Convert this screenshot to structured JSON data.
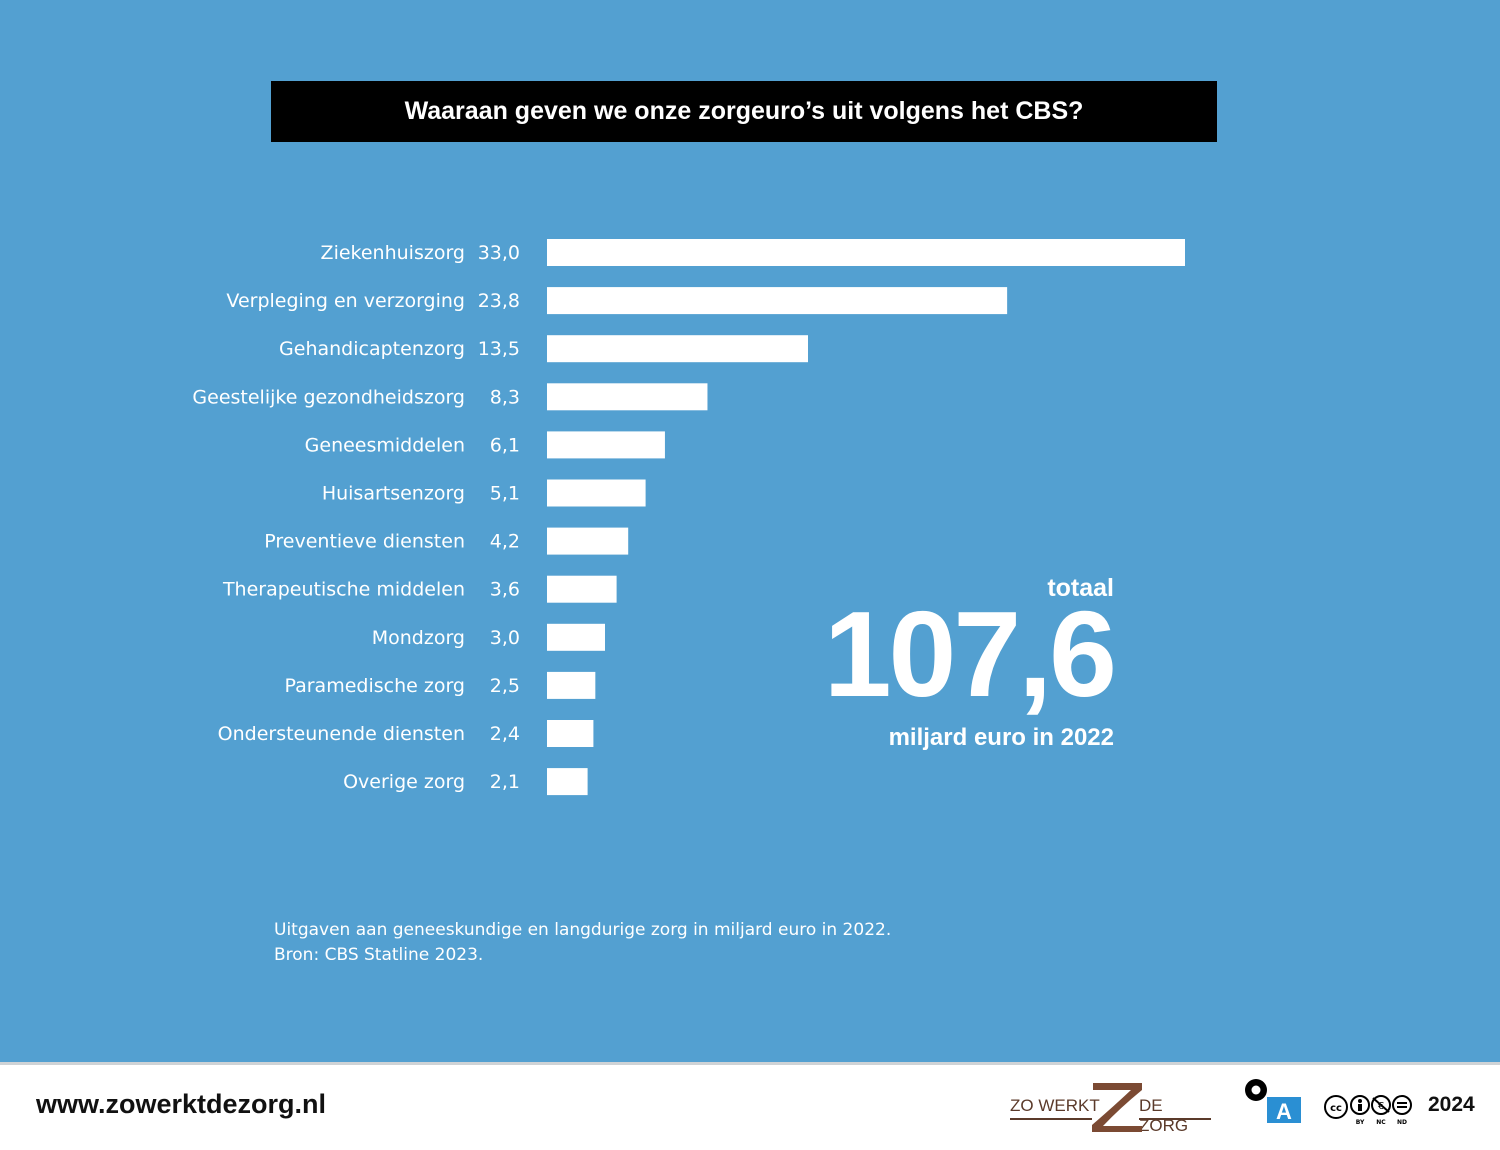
{
  "chart_data": {
    "type": "bar",
    "orientation": "horizontal",
    "title": "Waaraan geven we onze zorgeuro’s uit volgens het CBS?",
    "categories": [
      "Ziekenhuiszorg",
      "Verpleging en verzorging",
      "Gehandicaptenzorg",
      "Geestelijke gezondheidszorg",
      "Geneesmiddelen",
      "Huisartsenzorg",
      "Preventieve diensten",
      "Therapeutische middelen",
      "Mondzorg",
      "Paramedische zorg",
      "Ondersteunende diensten",
      "Overige zorg"
    ],
    "values": [
      33.0,
      23.8,
      13.5,
      8.3,
      6.1,
      5.1,
      4.2,
      3.6,
      3.0,
      2.5,
      2.4,
      2.1
    ],
    "value_labels": [
      "33,0",
      "23,8",
      "13,5",
      "8,3",
      "6,1",
      "5,1",
      "4,2",
      "3,6",
      "3,0",
      "2,5",
      "2,4",
      "2,1"
    ],
    "xlim": [
      0,
      33.0
    ],
    "grid": false,
    "legend": "none",
    "bar_color": "#ffffff",
    "background_color": "#53a0d1"
  },
  "total": {
    "label": "totaal",
    "value": "107,6",
    "unit": "miljard euro in 2022"
  },
  "note": {
    "line1": "Uitgaven aan geneeskundige en langdurige zorg in miljard euro in 2022.",
    "line2": "Bron: CBS Statline 2023."
  },
  "footer": {
    "url": "www.zowerktdezorg.nl",
    "logo_left": "ZO WERKT",
    "logo_right": "DE ZORG",
    "oa_letter": "A",
    "cc_icon": "cc-by-nc-nd-icon",
    "cc_by": "BY",
    "cc_nc": "NC",
    "cc_nd": "ND",
    "year": "2024"
  }
}
